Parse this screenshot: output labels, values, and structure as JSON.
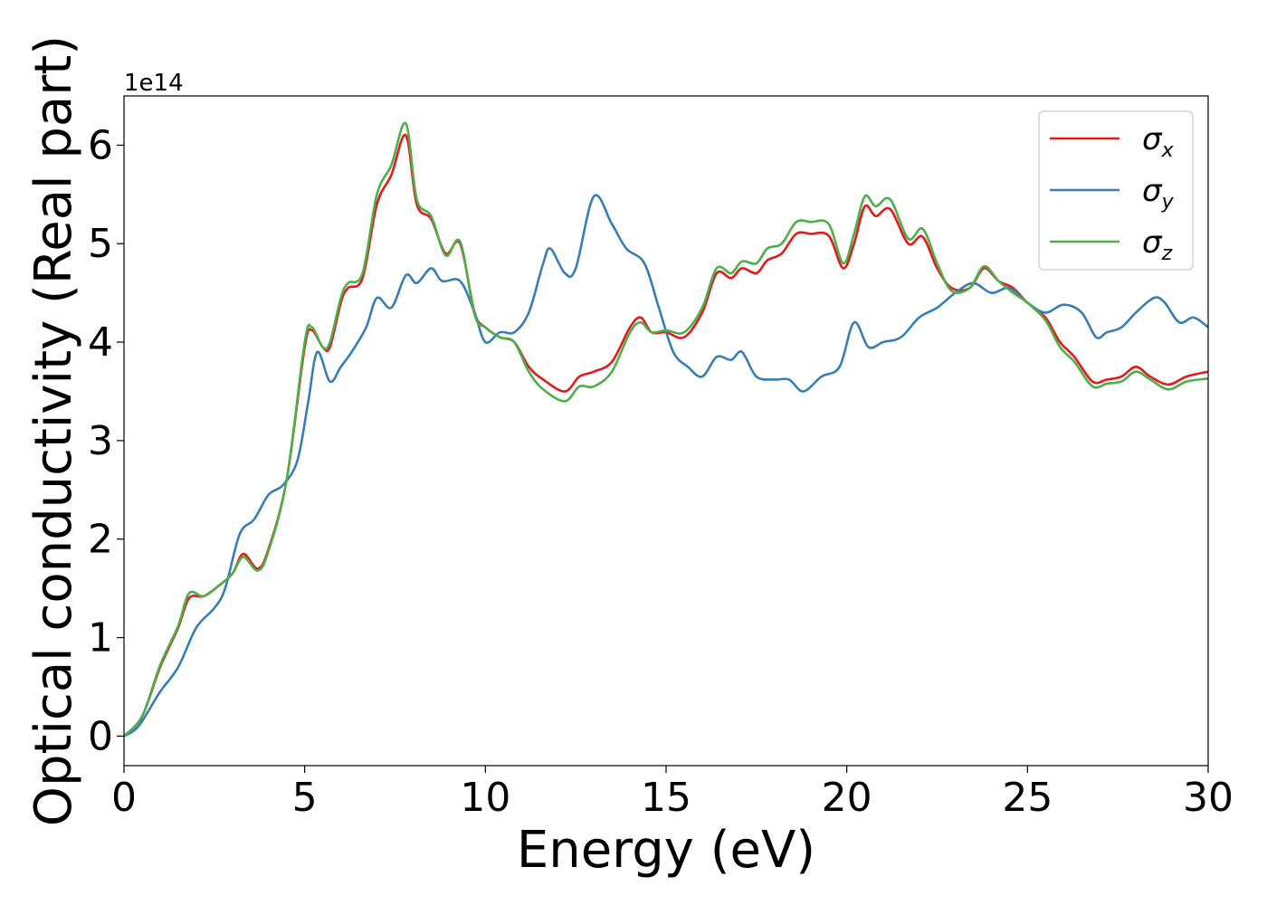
{
  "chart_data": {
    "type": "line",
    "xlabel": "Energy (eV)",
    "ylabel": "Optical conductivity (Real part)",
    "y_offset_label": "1e14",
    "y_scale_exponent": 14,
    "xlim": [
      0,
      30
    ],
    "ylim": [
      -0.3,
      6.5
    ],
    "x_ticks": [
      0,
      5,
      10,
      15,
      20,
      25,
      30
    ],
    "y_ticks": [
      0,
      1,
      2,
      3,
      4,
      5,
      6
    ],
    "grid": false,
    "legend_position": "top-right",
    "series": [
      {
        "name": "σx",
        "symbol": "σ",
        "subscript": "x",
        "color": "#e31a1c",
        "points": [
          [
            0,
            0
          ],
          [
            0.5,
            0.2
          ],
          [
            1,
            0.7
          ],
          [
            1.5,
            1.1
          ],
          [
            1.8,
            1.4
          ],
          [
            2.2,
            1.42
          ],
          [
            2.6,
            1.52
          ],
          [
            3,
            1.65
          ],
          [
            3.3,
            1.85
          ],
          [
            3.7,
            1.7
          ],
          [
            4,
            1.9
          ],
          [
            4.5,
            2.6
          ],
          [
            5,
            3.95
          ],
          [
            5.2,
            4.12
          ],
          [
            5.5,
            3.95
          ],
          [
            5.7,
            3.95
          ],
          [
            6,
            4.4
          ],
          [
            6.2,
            4.55
          ],
          [
            6.6,
            4.65
          ],
          [
            7,
            5.4
          ],
          [
            7.4,
            5.7
          ],
          [
            7.8,
            6.1
          ],
          [
            8.1,
            5.4
          ],
          [
            8.5,
            5.25
          ],
          [
            8.9,
            4.9
          ],
          [
            9.3,
            5.0
          ],
          [
            9.7,
            4.3
          ],
          [
            10,
            4.15
          ],
          [
            10.4,
            4.05
          ],
          [
            10.8,
            4.0
          ],
          [
            11.2,
            3.75
          ],
          [
            11.6,
            3.62
          ],
          [
            12.2,
            3.5
          ],
          [
            12.6,
            3.65
          ],
          [
            13,
            3.7
          ],
          [
            13.5,
            3.8
          ],
          [
            14,
            4.15
          ],
          [
            14.3,
            4.25
          ],
          [
            14.6,
            4.1
          ],
          [
            15,
            4.1
          ],
          [
            15.5,
            4.05
          ],
          [
            16,
            4.3
          ],
          [
            16.4,
            4.7
          ],
          [
            16.8,
            4.65
          ],
          [
            17.1,
            4.75
          ],
          [
            17.5,
            4.7
          ],
          [
            17.8,
            4.83
          ],
          [
            18.2,
            4.9
          ],
          [
            18.6,
            5.1
          ],
          [
            19,
            5.1
          ],
          [
            19.5,
            5.08
          ],
          [
            19.9,
            4.75
          ],
          [
            20.2,
            5.0
          ],
          [
            20.5,
            5.38
          ],
          [
            20.8,
            5.28
          ],
          [
            21.2,
            5.35
          ],
          [
            21.7,
            5.0
          ],
          [
            22.1,
            5.07
          ],
          [
            22.5,
            4.75
          ],
          [
            22.9,
            4.55
          ],
          [
            23.4,
            4.55
          ],
          [
            23.8,
            4.75
          ],
          [
            24.2,
            4.62
          ],
          [
            24.6,
            4.55
          ],
          [
            25,
            4.4
          ],
          [
            25.5,
            4.25
          ],
          [
            25.9,
            4.0
          ],
          [
            26.3,
            3.85
          ],
          [
            26.8,
            3.6
          ],
          [
            27.2,
            3.62
          ],
          [
            27.6,
            3.65
          ],
          [
            28,
            3.75
          ],
          [
            28.4,
            3.65
          ],
          [
            28.9,
            3.57
          ],
          [
            29.4,
            3.65
          ],
          [
            30,
            3.7
          ]
        ]
      },
      {
        "name": "σy",
        "symbol": "σ",
        "subscript": "y",
        "color": "#377eb8",
        "points": [
          [
            0,
            0
          ],
          [
            0.4,
            0.1
          ],
          [
            1,
            0.45
          ],
          [
            1.5,
            0.7
          ],
          [
            2,
            1.1
          ],
          [
            2.5,
            1.3
          ],
          [
            2.8,
            1.5
          ],
          [
            3.2,
            2.05
          ],
          [
            3.6,
            2.2
          ],
          [
            4,
            2.45
          ],
          [
            4.4,
            2.55
          ],
          [
            4.8,
            2.8
          ],
          [
            5.1,
            3.4
          ],
          [
            5.35,
            3.9
          ],
          [
            5.7,
            3.6
          ],
          [
            6,
            3.75
          ],
          [
            6.3,
            3.9
          ],
          [
            6.7,
            4.15
          ],
          [
            7,
            4.45
          ],
          [
            7.4,
            4.35
          ],
          [
            7.8,
            4.68
          ],
          [
            8.1,
            4.6
          ],
          [
            8.5,
            4.75
          ],
          [
            8.8,
            4.62
          ],
          [
            9.3,
            4.62
          ],
          [
            9.7,
            4.3
          ],
          [
            10,
            4.0
          ],
          [
            10.4,
            4.1
          ],
          [
            10.8,
            4.1
          ],
          [
            11.2,
            4.3
          ],
          [
            11.6,
            4.8
          ],
          [
            11.8,
            4.95
          ],
          [
            12.2,
            4.7
          ],
          [
            12.5,
            4.75
          ],
          [
            13,
            5.48
          ],
          [
            13.5,
            5.2
          ],
          [
            13.9,
            4.95
          ],
          [
            14.4,
            4.8
          ],
          [
            14.8,
            4.35
          ],
          [
            15.2,
            3.9
          ],
          [
            15.6,
            3.75
          ],
          [
            16,
            3.65
          ],
          [
            16.4,
            3.85
          ],
          [
            16.8,
            3.82
          ],
          [
            17.1,
            3.9
          ],
          [
            17.5,
            3.65
          ],
          [
            18,
            3.62
          ],
          [
            18.4,
            3.62
          ],
          [
            18.8,
            3.5
          ],
          [
            19.3,
            3.65
          ],
          [
            19.8,
            3.75
          ],
          [
            20.2,
            4.2
          ],
          [
            20.6,
            3.95
          ],
          [
            21,
            4.0
          ],
          [
            21.5,
            4.05
          ],
          [
            22,
            4.25
          ],
          [
            22.5,
            4.35
          ],
          [
            23,
            4.5
          ],
          [
            23.5,
            4.6
          ],
          [
            24,
            4.5
          ],
          [
            24.5,
            4.55
          ],
          [
            25,
            4.4
          ],
          [
            25.5,
            4.3
          ],
          [
            26,
            4.38
          ],
          [
            26.5,
            4.3
          ],
          [
            26.9,
            4.05
          ],
          [
            27.2,
            4.1
          ],
          [
            27.6,
            4.15
          ],
          [
            28,
            4.3
          ],
          [
            28.5,
            4.45
          ],
          [
            28.8,
            4.4
          ],
          [
            29.2,
            4.2
          ],
          [
            29.6,
            4.25
          ],
          [
            30,
            4.15
          ]
        ]
      },
      {
        "name": "σz",
        "symbol": "σ",
        "subscript": "z",
        "color": "#4daf4a",
        "points": [
          [
            0,
            0
          ],
          [
            0.5,
            0.2
          ],
          [
            1,
            0.72
          ],
          [
            1.5,
            1.12
          ],
          [
            1.8,
            1.45
          ],
          [
            2.2,
            1.42
          ],
          [
            2.6,
            1.52
          ],
          [
            3,
            1.65
          ],
          [
            3.3,
            1.82
          ],
          [
            3.7,
            1.68
          ],
          [
            4,
            1.88
          ],
          [
            4.5,
            2.6
          ],
          [
            5,
            4.0
          ],
          [
            5.2,
            4.15
          ],
          [
            5.5,
            3.95
          ],
          [
            5.7,
            4.0
          ],
          [
            6,
            4.45
          ],
          [
            6.2,
            4.6
          ],
          [
            6.6,
            4.7
          ],
          [
            7,
            5.5
          ],
          [
            7.4,
            5.8
          ],
          [
            7.8,
            6.22
          ],
          [
            8.1,
            5.45
          ],
          [
            8.5,
            5.28
          ],
          [
            8.9,
            4.88
          ],
          [
            9.3,
            5.02
          ],
          [
            9.7,
            4.28
          ],
          [
            10,
            4.15
          ],
          [
            10.4,
            4.05
          ],
          [
            10.8,
            4.0
          ],
          [
            11.2,
            3.7
          ],
          [
            11.6,
            3.52
          ],
          [
            12.2,
            3.4
          ],
          [
            12.6,
            3.55
          ],
          [
            13,
            3.55
          ],
          [
            13.5,
            3.7
          ],
          [
            14,
            4.1
          ],
          [
            14.3,
            4.2
          ],
          [
            14.6,
            4.1
          ],
          [
            15,
            4.12
          ],
          [
            15.5,
            4.1
          ],
          [
            16,
            4.35
          ],
          [
            16.4,
            4.75
          ],
          [
            16.8,
            4.7
          ],
          [
            17.1,
            4.82
          ],
          [
            17.5,
            4.8
          ],
          [
            17.8,
            4.95
          ],
          [
            18.2,
            5.0
          ],
          [
            18.6,
            5.22
          ],
          [
            19,
            5.22
          ],
          [
            19.5,
            5.2
          ],
          [
            19.9,
            4.8
          ],
          [
            20.2,
            5.1
          ],
          [
            20.5,
            5.48
          ],
          [
            20.8,
            5.38
          ],
          [
            21.2,
            5.45
          ],
          [
            21.7,
            5.05
          ],
          [
            22.1,
            5.15
          ],
          [
            22.5,
            4.8
          ],
          [
            22.9,
            4.52
          ],
          [
            23.4,
            4.55
          ],
          [
            23.8,
            4.77
          ],
          [
            24.2,
            4.62
          ],
          [
            24.6,
            4.5
          ],
          [
            25,
            4.4
          ],
          [
            25.5,
            4.22
          ],
          [
            25.9,
            3.95
          ],
          [
            26.3,
            3.8
          ],
          [
            26.8,
            3.55
          ],
          [
            27.2,
            3.58
          ],
          [
            27.6,
            3.6
          ],
          [
            28,
            3.7
          ],
          [
            28.4,
            3.62
          ],
          [
            28.9,
            3.52
          ],
          [
            29.4,
            3.6
          ],
          [
            30,
            3.63
          ]
        ]
      }
    ]
  }
}
